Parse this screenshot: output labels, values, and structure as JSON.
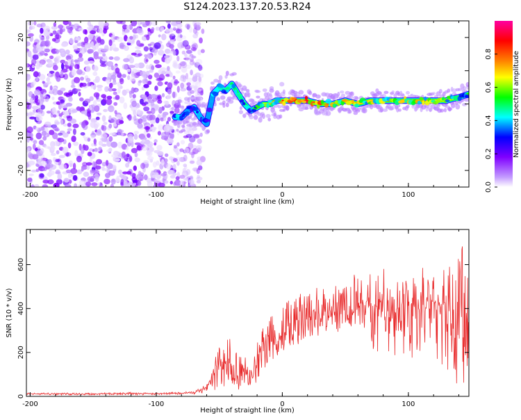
{
  "title": "S124.2023.137.20.53.R24",
  "chart_data": [
    {
      "type": "heatmap",
      "xlabel": "Height of straight line (km)",
      "ylabel": "Frequency (Hz)",
      "xlim": [
        -203,
        148
      ],
      "ylim": [
        -25,
        25
      ],
      "xticks": [
        "-200",
        "-100",
        "0",
        "100"
      ],
      "xtick_values": [
        -200,
        -100,
        0,
        100
      ],
      "yticks": [
        "-20",
        "-10",
        "0",
        "10",
        "20"
      ],
      "ytick_values": [
        -20,
        -10,
        0,
        10,
        20
      ],
      "colorbar": {
        "label": "Normalized spectral amplitude",
        "range": [
          0,
          1
        ],
        "ticks": [
          "0.0",
          "0.2",
          "0.4",
          "0.6",
          "0.8"
        ],
        "tick_values": [
          0.0,
          0.2,
          0.4,
          0.6,
          0.8
        ],
        "colors": [
          "#ffffff",
          "#c39bff",
          "#8000ff",
          "#0000ff",
          "#00ffff",
          "#00ff00",
          "#ffff00",
          "#ff8000",
          "#ff0000",
          "#ff00a0"
        ]
      },
      "signal_track": {
        "x": [
          -85,
          -80,
          -75,
          -70,
          -65,
          -60,
          -55,
          -50,
          -45,
          -40,
          -35,
          -30,
          -25,
          -20,
          -15,
          -10,
          -5,
          0,
          10,
          20,
          30,
          40,
          50,
          60,
          70,
          80,
          90,
          100,
          110,
          120,
          130,
          140,
          148
        ],
        "y": [
          -4,
          -4,
          -2,
          -1,
          -4,
          -6,
          3,
          5,
          4,
          6,
          3,
          0,
          -2,
          -1,
          0,
          0,
          1,
          1,
          1,
          1,
          0,
          0,
          1,
          0,
          1,
          1,
          1,
          1,
          1,
          1,
          1,
          2,
          3
        ],
        "amplitude": [
          0.45,
          0.4,
          0.35,
          0.4,
          0.45,
          0.35,
          0.4,
          0.45,
          0.45,
          0.5,
          0.5,
          0.45,
          0.55,
          0.6,
          0.65,
          0.7,
          0.75,
          0.8,
          0.95,
          0.95,
          0.85,
          0.8,
          0.75,
          0.7,
          0.7,
          0.7,
          0.75,
          0.75,
          0.75,
          0.7,
          0.65,
          0.6,
          0.5
        ]
      },
      "noise_region_x": [
        -203,
        -75
      ]
    },
    {
      "type": "line",
      "xlabel": "Height of straight line (km)",
      "ylabel": "SNR (10 * v/v)",
      "xlim": [
        -203,
        148
      ],
      "ylim": [
        0,
        760
      ],
      "xticks": [
        "-200",
        "-100",
        "0",
        "100"
      ],
      "xtick_values": [
        -200,
        -100,
        0,
        100
      ],
      "yticks": [
        "0",
        "200",
        "400",
        "600"
      ],
      "ytick_values": [
        0,
        200,
        400,
        600
      ],
      "line_color": "#e8292a",
      "series": [
        {
          "x": [
            -203,
            -180,
            -160,
            -140,
            -120,
            -100,
            -80,
            -70,
            -60,
            -55,
            -50,
            -45,
            -42,
            -40,
            -35,
            -30,
            -25,
            -22,
            -20,
            -15,
            -12,
            -10,
            -5,
            0,
            5,
            10,
            15,
            20,
            25,
            30,
            35,
            40,
            45,
            50,
            55,
            60,
            65,
            70,
            75,
            80,
            85,
            90,
            95,
            100,
            105,
            110,
            115,
            120,
            125,
            130,
            135,
            140,
            145,
            148
          ],
          "y": [
            12,
            12,
            11,
            12,
            13,
            12,
            14,
            18,
            40,
            90,
            180,
            130,
            260,
            90,
            140,
            120,
            60,
            110,
            150,
            270,
            210,
            280,
            230,
            300,
            320,
            340,
            360,
            360,
            370,
            380,
            360,
            380,
            390,
            420,
            370,
            400,
            450,
            400,
            420,
            430,
            380,
            400,
            410,
            450,
            400,
            380,
            420,
            430,
            400,
            450,
            380,
            470,
            330,
            380
          ],
          "upper_envelope": [
            16,
            16,
            15,
            16,
            18,
            16,
            20,
            25,
            60,
            140,
            260,
            210,
            300,
            180,
            230,
            200,
            120,
            190,
            260,
            380,
            300,
            390,
            330,
            430,
            440,
            480,
            470,
            490,
            480,
            510,
            490,
            520,
            530,
            530,
            540,
            580,
            520,
            560,
            590,
            620,
            540,
            570,
            530,
            560,
            580,
            600,
            560,
            580,
            560,
            650,
            620,
            760,
            720,
            560
          ],
          "lower_envelope": [
            6,
            6,
            6,
            6,
            6,
            6,
            8,
            10,
            15,
            20,
            30,
            25,
            40,
            20,
            30,
            20,
            10,
            40,
            60,
            120,
            110,
            150,
            150,
            190,
            200,
            220,
            250,
            260,
            270,
            280,
            250,
            270,
            280,
            290,
            250,
            250,
            300,
            220,
            200,
            180,
            170,
            150,
            200,
            180,
            150,
            130,
            200,
            130,
            140,
            90,
            70,
            20,
            10,
            60
          ]
        }
      ]
    }
  ]
}
